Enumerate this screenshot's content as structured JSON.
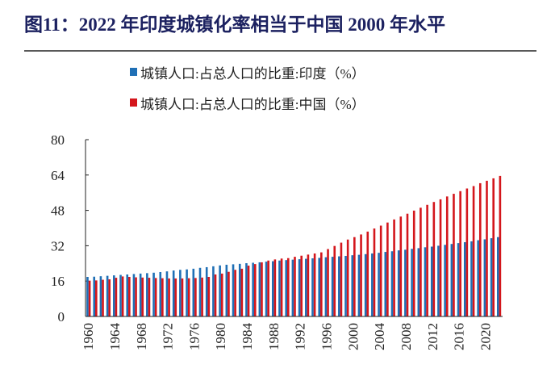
{
  "chart_data": {
    "type": "bar",
    "title": "图11：2022 年印度城镇化率相当于中国 2000 年水平",
    "xlabel": "",
    "ylabel": "",
    "ylim": [
      0,
      80
    ],
    "yticks": [
      0,
      16,
      32,
      48,
      64,
      80
    ],
    "legend_position": "top-center",
    "x": [
      1960,
      1961,
      1962,
      1963,
      1964,
      1965,
      1966,
      1967,
      1968,
      1969,
      1970,
      1971,
      1972,
      1973,
      1974,
      1975,
      1976,
      1977,
      1978,
      1979,
      1980,
      1981,
      1982,
      1983,
      1984,
      1985,
      1986,
      1987,
      1988,
      1989,
      1990,
      1991,
      1992,
      1993,
      1994,
      1995,
      1996,
      1997,
      1998,
      1999,
      2000,
      2001,
      2002,
      2003,
      2004,
      2005,
      2006,
      2007,
      2008,
      2009,
      2010,
      2011,
      2012,
      2013,
      2014,
      2015,
      2016,
      2017,
      2018,
      2019,
      2020,
      2021,
      2022
    ],
    "xtick_labels": [
      "1960",
      "1964",
      "1968",
      "1972",
      "1976",
      "1980",
      "1984",
      "1988",
      "1992",
      "1996",
      "2000",
      "2004",
      "2008",
      "2012",
      "2016",
      "2020"
    ],
    "series": [
      {
        "name": "城镇人口:占总人口的比重:印度（%）",
        "color": "#1f6fb5",
        "values": [
          17.9,
          18.0,
          18.2,
          18.4,
          18.6,
          18.8,
          19.0,
          19.2,
          19.4,
          19.6,
          19.8,
          20.1,
          20.4,
          20.8,
          21.1,
          21.3,
          21.6,
          22.0,
          22.3,
          22.7,
          23.1,
          23.4,
          23.6,
          23.8,
          24.1,
          24.3,
          24.5,
          24.8,
          25.0,
          25.3,
          25.5,
          25.7,
          25.9,
          26.1,
          26.3,
          26.5,
          26.8,
          27.0,
          27.2,
          27.4,
          27.7,
          27.9,
          28.2,
          28.5,
          28.8,
          29.2,
          29.5,
          29.9,
          30.2,
          30.6,
          30.9,
          31.3,
          31.6,
          32.0,
          32.4,
          32.8,
          33.2,
          33.6,
          34.0,
          34.5,
          34.9,
          35.4,
          35.9
        ]
      },
      {
        "name": "城镇人口:占总人口的比重:中国（%）",
        "color": "#d4161c",
        "values": [
          16.2,
          16.3,
          16.6,
          16.8,
          17.5,
          18.1,
          17.9,
          17.7,
          17.6,
          17.5,
          17.4,
          17.3,
          17.2,
          17.2,
          17.2,
          17.3,
          17.4,
          17.6,
          17.9,
          19.0,
          19.4,
          20.2,
          21.1,
          21.6,
          23.0,
          23.7,
          24.5,
          25.3,
          25.8,
          26.2,
          26.4,
          27.0,
          27.5,
          28.0,
          28.5,
          29.0,
          30.5,
          31.9,
          33.4,
          34.8,
          35.9,
          37.1,
          38.4,
          39.8,
          41.1,
          42.5,
          43.9,
          45.2,
          46.5,
          47.9,
          49.2,
          50.5,
          51.8,
          53.0,
          54.3,
          55.5,
          56.7,
          57.9,
          59.0,
          60.3,
          61.4,
          62.5,
          63.6
        ]
      }
    ]
  }
}
